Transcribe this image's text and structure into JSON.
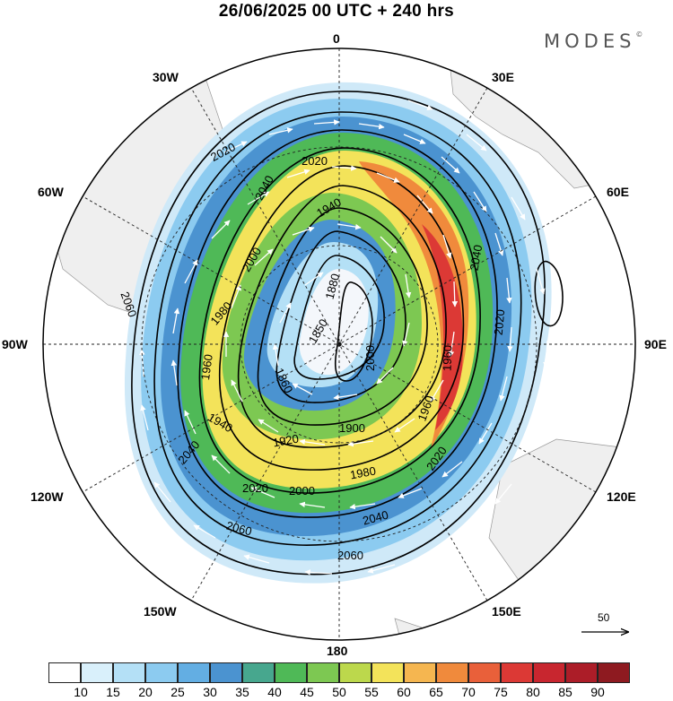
{
  "title": "26/06/2025  00 UTC  + 240 hrs",
  "brand": {
    "text": "MODES",
    "mark": "©"
  },
  "longitude_labels": {
    "north": "0",
    "south": "180",
    "east90": "90E",
    "west90": "90W",
    "e30": "30E",
    "e60": "60E",
    "e120": "120E",
    "e150": "150E",
    "w30": "30W",
    "w60": "60W",
    "w120": "120W",
    "w150": "150W"
  },
  "contour_labels": [
    "2060",
    "2040",
    "2020",
    "2000",
    "1980",
    "1960",
    "1940",
    "1920",
    "1900",
    "1880",
    "1860",
    "1850"
  ],
  "vector_reference": {
    "value": "50",
    "icon": "arrow-right-icon"
  },
  "colorbar": {
    "ticks": [
      "10",
      "15",
      "20",
      "25",
      "30",
      "35",
      "40",
      "45",
      "50",
      "55",
      "60",
      "65",
      "70",
      "75",
      "80",
      "85",
      "90"
    ],
    "colors": [
      "#ffffff",
      "#d9f0fb",
      "#b4e0f6",
      "#8ccbf0",
      "#63aee3",
      "#4b93d0",
      "#47a78e",
      "#4fb957",
      "#7dc852",
      "#bcd84c",
      "#f3e35a",
      "#f5b650",
      "#f08a3c",
      "#e9603a",
      "#dc3935",
      "#c8262f",
      "#ac1d28",
      "#8e1a20"
    ]
  }
}
